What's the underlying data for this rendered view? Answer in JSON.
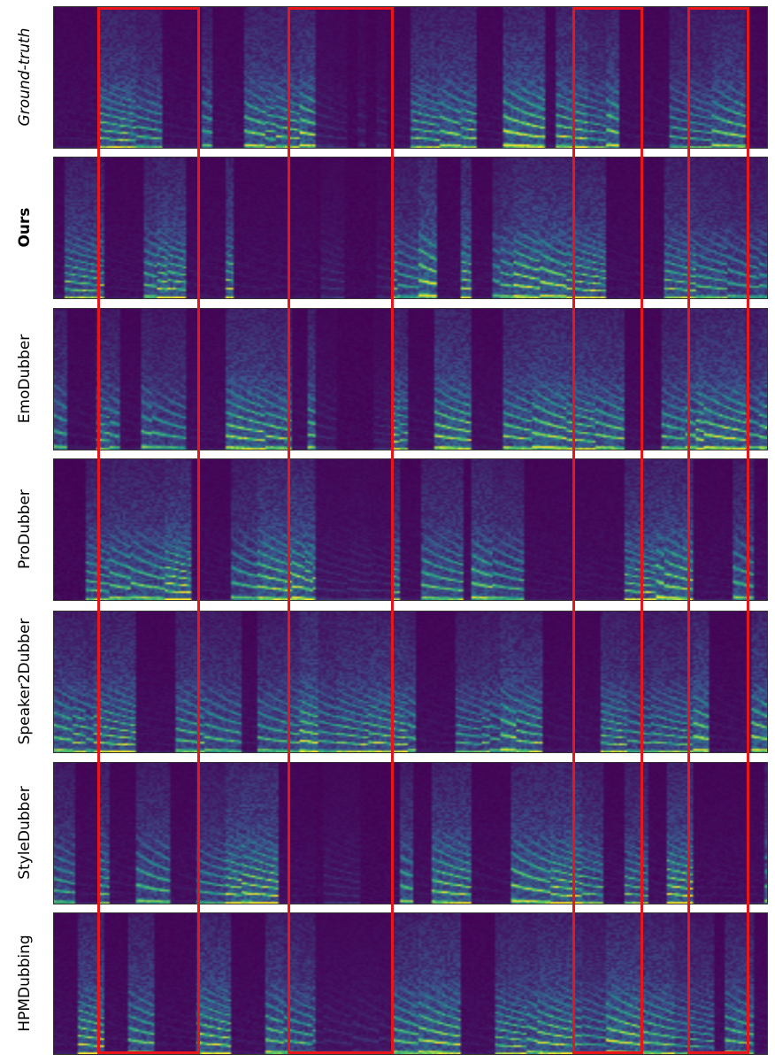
{
  "figure": {
    "rows": [
      {
        "label": "Ground-truth",
        "style": "italic"
      },
      {
        "label": "Ours",
        "style": "bold"
      },
      {
        "label": "EmoDubber",
        "style": "upright"
      },
      {
        "label": "ProDubber",
        "style": "upright"
      },
      {
        "label": "Speaker2Dubber",
        "style": "upright"
      },
      {
        "label": "StyleDubber",
        "style": "upright"
      },
      {
        "label": "HPMDubbing",
        "style": "upright"
      }
    ],
    "panel_type": "mel-spectrogram",
    "colormap": "viridis",
    "highlight_color": "#e8161b",
    "highlight_count": 4
  }
}
